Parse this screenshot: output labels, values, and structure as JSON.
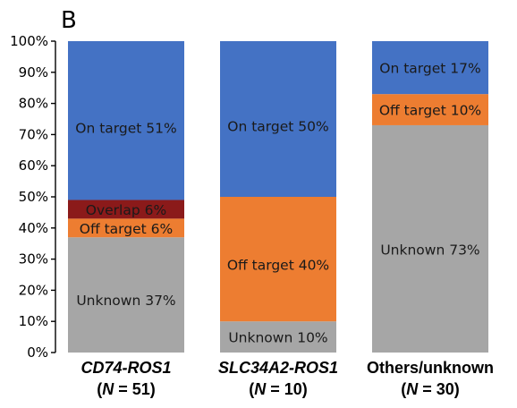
{
  "panel_label": "B",
  "chart_data": {
    "type": "bar",
    "stacked": true,
    "title": "",
    "xlabel": "",
    "ylabel": "",
    "ylim": [
      0,
      100
    ],
    "y_tick_labels": [
      "0%",
      "10%",
      "20%",
      "30%",
      "40%",
      "50%",
      "60%",
      "70%",
      "80%",
      "90%",
      "100%"
    ],
    "grid": false,
    "categories": [
      {
        "name": "CD74-ROS1",
        "italic": true,
        "n_label": "(N = 51)",
        "n_prefix": "(",
        "n_letter": "N",
        "n_suffix": " = 51)"
      },
      {
        "name": "SLC34A2-ROS1",
        "italic": true,
        "n_label": "(N = 10)",
        "n_prefix": "(",
        "n_letter": "N",
        "n_suffix": " = 10)"
      },
      {
        "name": "Others/unknown",
        "italic": false,
        "n_label": "(N = 30)",
        "n_prefix": "(",
        "n_letter": "N",
        "n_suffix": " = 30)"
      }
    ],
    "series_colors": {
      "Unknown": "#a6a6a6",
      "Off target": "#ed7d31",
      "Overlap": "#8b1a1a",
      "On target": "#4472c4"
    },
    "bars": [
      {
        "segments": [
          {
            "series": "Unknown",
            "value": 37,
            "label": "Unknown 37%"
          },
          {
            "series": "Off target",
            "value": 6,
            "label": "Off target 6%"
          },
          {
            "series": "Overlap",
            "value": 6,
            "label": "Overlap 6%"
          },
          {
            "series": "On target",
            "value": 51,
            "label": "On target 51%"
          }
        ]
      },
      {
        "segments": [
          {
            "series": "Unknown",
            "value": 10,
            "label": "Unknown 10%"
          },
          {
            "series": "Off target",
            "value": 40,
            "label": "Off target 40%"
          },
          {
            "series": "On target",
            "value": 50,
            "label": "On target 50%"
          }
        ]
      },
      {
        "segments": [
          {
            "series": "Unknown",
            "value": 73,
            "label": "Unknown 73%"
          },
          {
            "series": "Off target",
            "value": 10,
            "label": "Off target 10%"
          },
          {
            "series": "On target",
            "value": 17,
            "label": "On target 17%"
          }
        ]
      }
    ]
  }
}
